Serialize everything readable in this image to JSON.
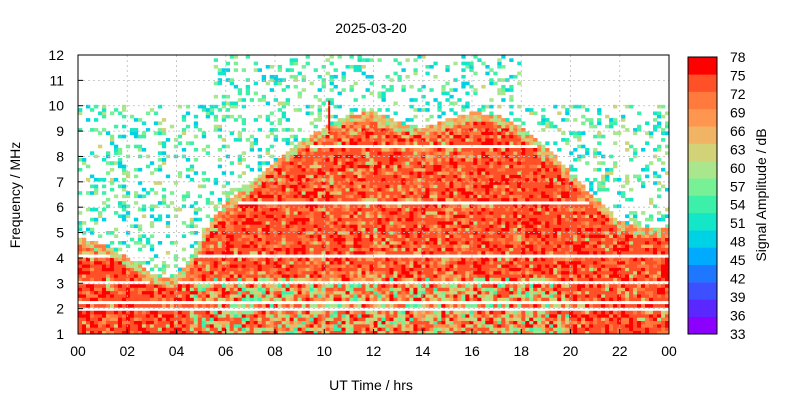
{
  "chart_data": {
    "type": "heatmap",
    "title": "2025-03-20",
    "xlabel": "UT Time / hrs",
    "ylabel": "Frequency / MHz",
    "colorbar_label": "Signal Amplitude / dB",
    "x_ticks": [
      "00",
      "02",
      "04",
      "06",
      "08",
      "10",
      "12",
      "14",
      "16",
      "18",
      "20",
      "22",
      "00"
    ],
    "y_ticks": [
      "1",
      "2",
      "3",
      "4",
      "5",
      "6",
      "7",
      "8",
      "9",
      "10",
      "11",
      "12"
    ],
    "xlim_hours": [
      0,
      24
    ],
    "ylim_mhz": [
      1,
      12
    ],
    "colorbar_ticks": [
      "78",
      "75",
      "72",
      "69",
      "66",
      "63",
      "60",
      "57",
      "54",
      "51",
      "48",
      "45",
      "42",
      "39",
      "36",
      "33"
    ],
    "colorbar_range_db": [
      33,
      78
    ],
    "colorscale": [
      "#8b00ff",
      "#5a28ff",
      "#3c50ff",
      "#1e78ff",
      "#00aaff",
      "#00d2e6",
      "#14e6c8",
      "#3cf0aa",
      "#78f096",
      "#aae68c",
      "#d2d278",
      "#f0b464",
      "#ff9650",
      "#ff7a3c",
      "#ff5028",
      "#ff0000"
    ],
    "grid": true,
    "max_usable_frequency_mhz": [
      {
        "t": 0.0,
        "f": 4.5
      },
      {
        "t": 1.0,
        "f": 4.2
      },
      {
        "t": 2.0,
        "f": 3.7
      },
      {
        "t": 3.0,
        "f": 3.0
      },
      {
        "t": 3.7,
        "f": 2.8
      },
      {
        "t": 4.5,
        "f": 3.4
      },
      {
        "t": 5.0,
        "f": 4.5
      },
      {
        "t": 5.5,
        "f": 5.2
      },
      {
        "t": 6.0,
        "f": 5.8
      },
      {
        "t": 7.0,
        "f": 6.6
      },
      {
        "t": 8.0,
        "f": 7.5
      },
      {
        "t": 9.0,
        "f": 8.2
      },
      {
        "t": 10.0,
        "f": 8.8
      },
      {
        "t": 11.0,
        "f": 9.3
      },
      {
        "t": 12.0,
        "f": 9.4
      },
      {
        "t": 13.0,
        "f": 9.0
      },
      {
        "t": 14.0,
        "f": 8.8
      },
      {
        "t": 15.0,
        "f": 9.1
      },
      {
        "t": 16.0,
        "f": 9.4
      },
      {
        "t": 17.0,
        "f": 9.3
      },
      {
        "t": 18.0,
        "f": 8.8
      },
      {
        "t": 19.0,
        "f": 8.1
      },
      {
        "t": 20.0,
        "f": 7.0
      },
      {
        "t": 21.0,
        "f": 6.0
      },
      {
        "t": 22.0,
        "f": 5.1
      },
      {
        "t": 23.0,
        "f": 4.8
      },
      {
        "t": 24.0,
        "f": 4.8
      }
    ],
    "spike": {
      "t": 10.2,
      "f_top": 10.2
    }
  }
}
